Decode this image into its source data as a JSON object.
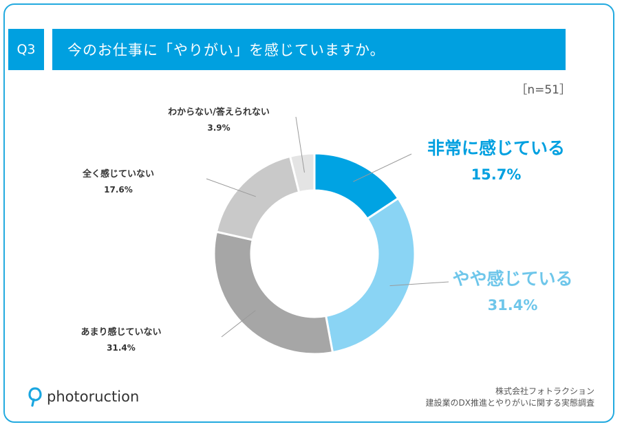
{
  "header": {
    "question_no": "Q3",
    "question": "今のお仕事に「やりがい」を感じていますか。",
    "sample_size": "［n=51］"
  },
  "chart_data": {
    "type": "pie",
    "donut": true,
    "unit": "%",
    "categories": [
      "非常に感じている",
      "やや感じている",
      "あまり感じていない",
      "全く感じていない",
      "わからない/答えられない"
    ],
    "values": [
      15.7,
      31.4,
      31.4,
      17.6,
      3.9
    ],
    "value_labels": [
      "15.7%",
      "31.4%",
      "31.4%",
      "17.6%",
      "3.9%"
    ],
    "colors": [
      "#00a3e3",
      "#8ad4f4",
      "#a6a6a6",
      "#c9c9c9",
      "#e4e4e4"
    ]
  },
  "footer": {
    "brand": "photoruction",
    "company": "株式会社フォトラクション",
    "survey": "建設業のDX推進とやりがいに関する実態調査"
  }
}
